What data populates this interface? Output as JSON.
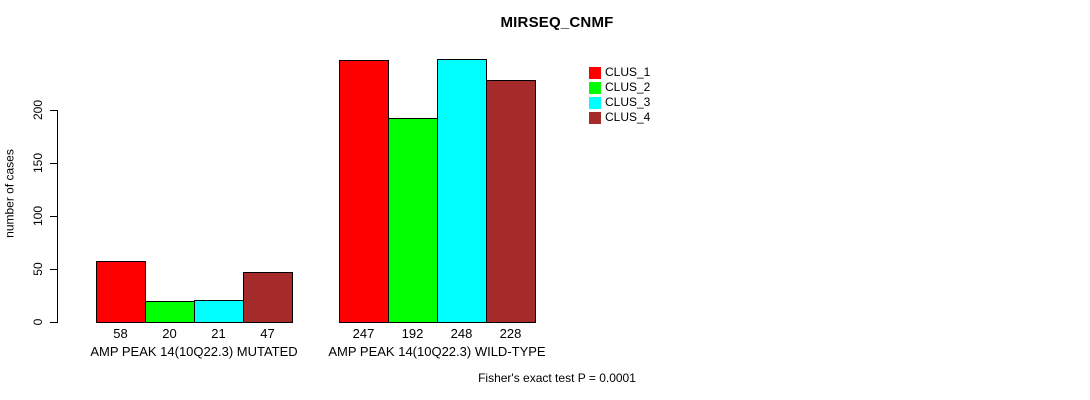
{
  "chart_data": {
    "type": "bar",
    "title": "MIRSEQ_CNMF",
    "ylabel": "number of cases",
    "xlabel": "",
    "categories": [
      "AMP PEAK 14(10Q22.3) MUTATED",
      "AMP PEAK 14(10Q22.3) WILD-TYPE"
    ],
    "series": [
      {
        "name": "CLUS_1",
        "color": "#FF0000",
        "values": [
          58,
          247
        ]
      },
      {
        "name": "CLUS_2",
        "color": "#00FF00",
        "values": [
          20,
          192
        ]
      },
      {
        "name": "CLUS_3",
        "color": "#00FFFF",
        "values": [
          21,
          248
        ]
      },
      {
        "name": "CLUS_4",
        "color": "#A52A2A",
        "values": [
          47,
          228
        ]
      }
    ],
    "yticks": [
      0,
      50,
      100,
      150,
      200
    ],
    "ylim": [
      0,
      248
    ],
    "grid": false,
    "legend_position": "top-right",
    "value_labels_shown": true,
    "footnote": "Fisher's exact test P = 0.0001"
  }
}
